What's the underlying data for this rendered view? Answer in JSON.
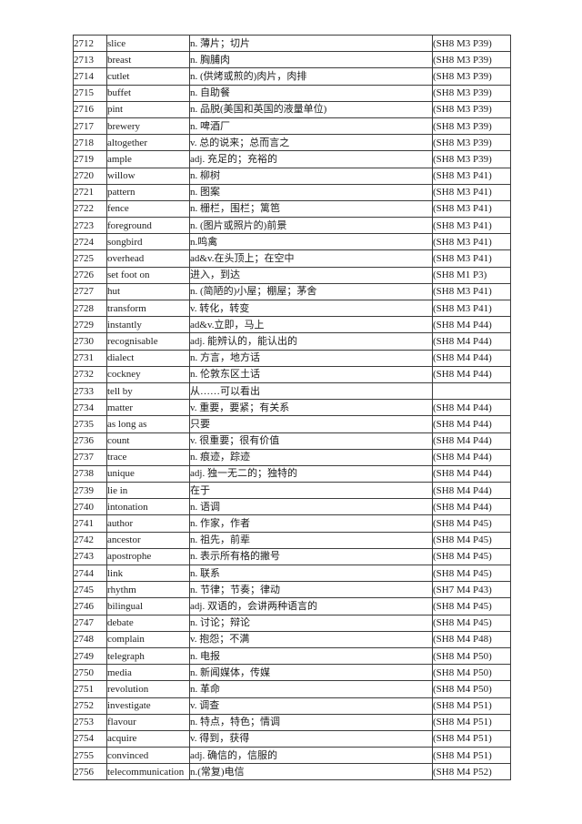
{
  "page": {
    "background": "#ffffff",
    "border_color": "#3d3d3d",
    "text_color": "#1c1c1c"
  },
  "table": {
    "columns": [
      "index",
      "word",
      "definition",
      "source"
    ],
    "rows": [
      [
        "2712",
        "slice",
        "n. 薄片；切片",
        "(SH8 M3 P39)"
      ],
      [
        "2713",
        "breast",
        "n. 胸脯肉",
        "(SH8 M3 P39)"
      ],
      [
        "2714",
        "cutlet",
        "n. (供烤或煎的)肉片，肉排",
        "(SH8 M3 P39)"
      ],
      [
        "2715",
        "buffet",
        "n. 自助餐",
        "(SH8 M3 P39)"
      ],
      [
        "2716",
        "pint",
        "n. 品脱(美国和英国的液量单位)",
        "(SH8 M3 P39)"
      ],
      [
        "2717",
        "brewery",
        "n. 啤酒厂",
        "(SH8 M3 P39)"
      ],
      [
        "2718",
        "altogether",
        "v. 总的说来；总而言之",
        "(SH8 M3 P39)"
      ],
      [
        "2719",
        "ample",
        "adj. 充足的；充裕的",
        "(SH8 M3 P39)"
      ],
      [
        "2720",
        "willow",
        "n. 柳树",
        "(SH8 M3 P41)"
      ],
      [
        "2721",
        "pattern",
        "n. 图案",
        "(SH8 M3 P41)"
      ],
      [
        "2722",
        "fence",
        "n. 栅栏，围栏；篱笆",
        "(SH8 M3 P41)"
      ],
      [
        "2723",
        "foreground",
        "n. (图片或照片的)前景",
        "(SH8 M3 P41)"
      ],
      [
        "2724",
        "songbird",
        "n.鸣禽",
        "(SH8 M3 P41)"
      ],
      [
        "2725",
        "overhead",
        "ad&v.在头顶上；在空中",
        "(SH8 M3 P41)"
      ],
      [
        "2726",
        "set foot on",
        "进入，到达",
        "(SH8 M1 P3)"
      ],
      [
        "2727",
        "hut",
        "n. (简陋的)小屋；棚屋；茅舍",
        "(SH8 M3 P41)"
      ],
      [
        "2728",
        "transform",
        "v. 转化，转变",
        "(SH8 M3 P41)"
      ],
      [
        "2729",
        "instantly",
        "ad&v.立即，马上",
        "(SH8 M4 P44)"
      ],
      [
        "2730",
        "recognisable",
        "adj. 能辨认的，能认出的",
        "(SH8 M4 P44)"
      ],
      [
        "2731",
        "dialect",
        "n. 方言，地方话",
        "(SH8 M4 P44)"
      ],
      [
        "2732",
        "cockney",
        "n. 伦敦东区土话",
        "(SH8 M4 P44)"
      ],
      [
        "2733",
        "tell by",
        "从……可以看出",
        ""
      ],
      [
        "2734",
        "matter",
        "v. 重要，要紧；有关系",
        "(SH8 M4 P44)"
      ],
      [
        "2735",
        "as long as",
        "只要",
        "(SH8 M4 P44)"
      ],
      [
        "2736",
        "count",
        "v. 很重要；很有价值",
        "(SH8 M4 P44)"
      ],
      [
        "2737",
        "trace",
        "n. 痕迹，踪迹",
        "(SH8 M4 P44)"
      ],
      [
        "2738",
        "unique",
        "adj. 独一无二的；独特的",
        "(SH8 M4 P44)"
      ],
      [
        "2739",
        "lie in",
        "在于",
        "(SH8 M4 P44)"
      ],
      [
        "2740",
        "intonation",
        "n. 语调",
        "(SH8 M4 P44)"
      ],
      [
        "2741",
        "author",
        "n. 作家，作者",
        "(SH8 M4 P45)"
      ],
      [
        "2742",
        "ancestor",
        "n. 祖先，前辈",
        "(SH8 M4 P45)"
      ],
      [
        "2743",
        "apostrophe",
        "n. 表示所有格的撇号",
        "(SH8 M4 P45)"
      ],
      [
        "2744",
        "link",
        "n. 联系",
        "(SH8 M4 P45)"
      ],
      [
        "2745",
        "rhythm",
        "n. 节律；节奏；律动",
        "(SH7 M4 P43)"
      ],
      [
        "2746",
        "bilingual",
        "adj. 双语的，会讲两种语言的",
        "(SH8 M4 P45)"
      ],
      [
        "2747",
        "debate",
        "n. 讨论；辩论",
        "(SH8 M4 P45)"
      ],
      [
        "2748",
        "complain",
        "v. 抱怨；不满",
        "(SH8 M4 P48)"
      ],
      [
        "2749",
        "telegraph",
        "n. 电报",
        "(SH8 M4 P50)"
      ],
      [
        "2750",
        "media",
        "n. 新闻媒体，传媒",
        "(SH8 M4 P50)"
      ],
      [
        "2751",
        "revolution",
        "n. 革命",
        "(SH8 M4 P50)"
      ],
      [
        "2752",
        "investigate",
        "v. 调查",
        "(SH8 M4 P51)"
      ],
      [
        "2753",
        "flavour",
        "n. 特点，特色；情调",
        "(SH8 M4 P51)"
      ],
      [
        "2754",
        "acquire",
        "v. 得到，获得",
        "(SH8 M4 P51)"
      ],
      [
        "2755",
        "convinced",
        "adj. 确信的，信服的",
        "(SH8 M4 P51)"
      ],
      [
        "2756",
        "telecommunication",
        "n.(常复)电信",
        "(SH8 M4 P52)"
      ]
    ]
  }
}
